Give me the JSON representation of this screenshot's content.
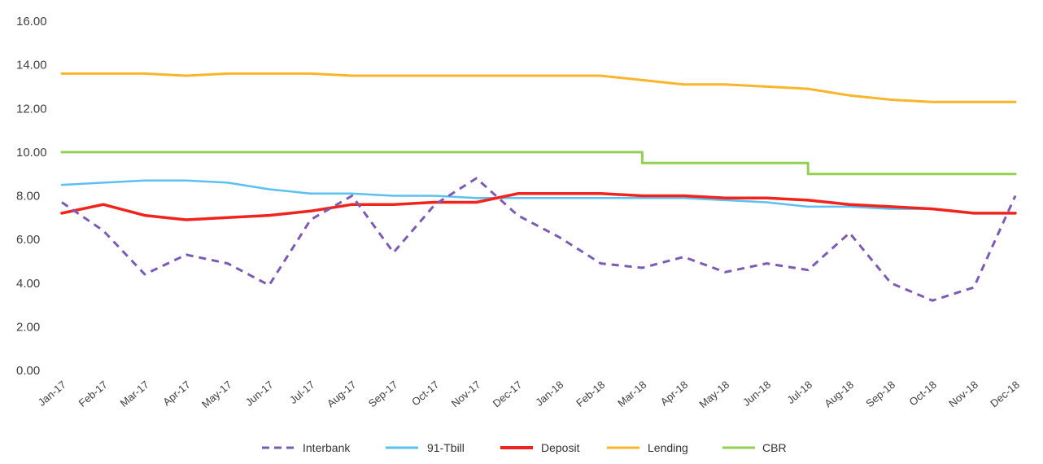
{
  "chart_data": {
    "type": "line",
    "title": "",
    "xlabel": "",
    "ylabel": "",
    "ylim": [
      0,
      16
    ],
    "yticks": [
      "0.00",
      "2.00",
      "4.00",
      "6.00",
      "8.00",
      "10.00",
      "12.00",
      "14.00",
      "16.00"
    ],
    "grid": false,
    "legend_position": "bottom",
    "categories": [
      "Jan-17",
      "Feb-17",
      "Mar-17",
      "Apr-17",
      "May-17",
      "Jun-17",
      "Jul-17",
      "Aug-17",
      "Sep-17",
      "Oct-17",
      "Nov-17",
      "Dec-17",
      "Jan-18",
      "Feb-18",
      "Mar-18",
      "Apr-18",
      "May-18",
      "Jun-18",
      "Jul-18",
      "Aug-18",
      "Sep-18",
      "Oct-18",
      "Nov-18",
      "Dec-18"
    ],
    "series": [
      {
        "name": "Interbank",
        "color": "#7b5bb5",
        "style": "dashed",
        "values": [
          7.7,
          6.4,
          4.4,
          5.3,
          4.9,
          3.9,
          6.9,
          8.0,
          5.4,
          7.6,
          8.8,
          7.1,
          6.1,
          4.9,
          4.7,
          5.2,
          4.5,
          4.9,
          4.6,
          6.3,
          4.0,
          3.2,
          3.8,
          8.0
        ]
      },
      {
        "name": "91-Tbill",
        "color": "#5bc0f2",
        "style": "solid",
        "values": [
          8.5,
          8.6,
          8.7,
          8.7,
          8.6,
          8.3,
          8.1,
          8.1,
          8.0,
          8.0,
          7.9,
          7.9,
          7.9,
          7.9,
          7.9,
          7.9,
          7.8,
          7.7,
          7.5,
          7.5,
          7.4,
          7.4,
          7.2,
          7.2
        ]
      },
      {
        "name": "Deposit",
        "color": "#f0241c",
        "style": "solid",
        "values": [
          7.2,
          7.6,
          7.1,
          6.9,
          7.0,
          7.1,
          7.3,
          7.6,
          7.6,
          7.7,
          7.7,
          8.1,
          8.1,
          8.1,
          8.0,
          8.0,
          7.9,
          7.9,
          7.8,
          7.6,
          7.5,
          7.4,
          7.2,
          7.2
        ]
      },
      {
        "name": "Lending",
        "color": "#fbb52b",
        "style": "solid",
        "values": [
          13.6,
          13.6,
          13.6,
          13.5,
          13.6,
          13.6,
          13.6,
          13.5,
          13.5,
          13.5,
          13.5,
          13.5,
          13.5,
          13.5,
          13.3,
          13.1,
          13.1,
          13.0,
          12.9,
          12.6,
          12.4,
          12.3,
          12.3,
          12.3
        ]
      },
      {
        "name": "CBR",
        "color": "#92d050",
        "style": "step",
        "values": [
          10.0,
          10.0,
          10.0,
          10.0,
          10.0,
          10.0,
          10.0,
          10.0,
          10.0,
          10.0,
          10.0,
          10.0,
          10.0,
          10.0,
          9.5,
          9.5,
          9.5,
          9.5,
          9.0,
          9.0,
          9.0,
          9.0,
          9.0,
          9.0
        ]
      }
    ]
  }
}
